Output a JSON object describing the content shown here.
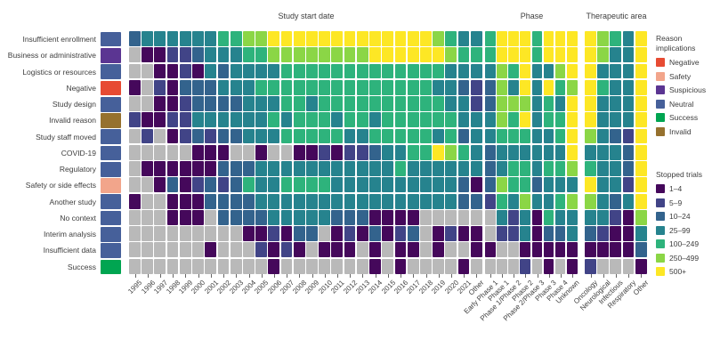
{
  "chart_data": {
    "type": "heatmap",
    "description": "Counts of stopped clinical trials binned by reason (rows) versus study start date, phase and therapeutic area (columns). Cell color encodes number of stopped trials; gray means none.",
    "value_encoding": [
      "none",
      "1–4",
      "5–9",
      "10–24",
      "25–99",
      "100–249",
      "250–499",
      "500+"
    ],
    "no_data_color": "#b9b9b9",
    "rows": [
      {
        "label": "Insufficient enrollment",
        "implication": "Neutral"
      },
      {
        "label": "Business or administrative",
        "implication": "Suspicious"
      },
      {
        "label": "Logistics or resources",
        "implication": "Neutral"
      },
      {
        "label": "Negative",
        "implication": "Negative"
      },
      {
        "label": "Study design",
        "implication": "Neutral"
      },
      {
        "label": "Invalid reason",
        "implication": "Invalid"
      },
      {
        "label": "Study staff moved",
        "implication": "Neutral"
      },
      {
        "label": "COVID-19",
        "implication": "Neutral"
      },
      {
        "label": "Regulatory",
        "implication": "Neutral"
      },
      {
        "label": "Safety or side effects",
        "implication": "Safety"
      },
      {
        "label": "Another study",
        "implication": "Neutral"
      },
      {
        "label": "No context",
        "implication": "Neutral"
      },
      {
        "label": "Interim analysis",
        "implication": "Neutral"
      },
      {
        "label": "Insufficient data",
        "implication": "Neutral"
      },
      {
        "label": "Success",
        "implication": "Success"
      }
    ],
    "sections": [
      {
        "title": "Study start date",
        "columns": [
          "1995",
          "1996",
          "1997",
          "1998",
          "1999",
          "2000",
          "2001",
          "2002",
          "2003",
          "2004",
          "2005",
          "2006",
          "2007",
          "2008",
          "2009",
          "2010",
          "2011",
          "2012",
          "2013",
          "2014",
          "2015",
          "2016",
          "2017",
          "2018",
          "2019",
          "2020",
          "2021",
          "Other"
        ],
        "values": [
          [
            3,
            4,
            4,
            4,
            4,
            4,
            4,
            5,
            5,
            6,
            6,
            7,
            7,
            7,
            7,
            7,
            7,
            7,
            7,
            7,
            7,
            7,
            7,
            7,
            6,
            5,
            4,
            4
          ],
          [
            0,
            1,
            1,
            2,
            2,
            3,
            4,
            4,
            4,
            5,
            5,
            6,
            6,
            6,
            6,
            6,
            6,
            6,
            6,
            7,
            7,
            7,
            7,
            7,
            7,
            6,
            5,
            5
          ],
          [
            0,
            0,
            1,
            1,
            2,
            1,
            4,
            3,
            4,
            4,
            4,
            4,
            5,
            5,
            5,
            5,
            5,
            5,
            5,
            5,
            5,
            5,
            5,
            5,
            5,
            4,
            4,
            4
          ],
          [
            1,
            0,
            2,
            1,
            3,
            3,
            3,
            4,
            4,
            4,
            5,
            5,
            5,
            5,
            5,
            5,
            5,
            5,
            5,
            5,
            5,
            5,
            5,
            5,
            4,
            4,
            3,
            2
          ],
          [
            0,
            0,
            1,
            1,
            2,
            3,
            3,
            3,
            3,
            4,
            4,
            4,
            5,
            5,
            4,
            5,
            5,
            5,
            5,
            5,
            5,
            5,
            5,
            5,
            5,
            4,
            4,
            2
          ],
          [
            2,
            1,
            1,
            2,
            2,
            4,
            4,
            4,
            4,
            4,
            4,
            5,
            4,
            5,
            5,
            5,
            4,
            5,
            5,
            4,
            5,
            5,
            5,
            5,
            5,
            5,
            4,
            4
          ],
          [
            0,
            2,
            0,
            1,
            2,
            3,
            2,
            3,
            3,
            4,
            4,
            4,
            5,
            5,
            5,
            5,
            5,
            4,
            4,
            5,
            5,
            5,
            5,
            5,
            4,
            5,
            3,
            4
          ],
          [
            0,
            0,
            0,
            0,
            0,
            1,
            1,
            1,
            0,
            0,
            1,
            0,
            0,
            1,
            1,
            2,
            1,
            2,
            2,
            3,
            4,
            4,
            5,
            5,
            7,
            6,
            5,
            4
          ],
          [
            0,
            1,
            1,
            1,
            1,
            1,
            1,
            3,
            3,
            3,
            4,
            4,
            4,
            4,
            4,
            4,
            4,
            4,
            4,
            4,
            4,
            5,
            4,
            4,
            4,
            4,
            4,
            4
          ],
          [
            0,
            0,
            1,
            3,
            1,
            2,
            3,
            2,
            3,
            5,
            4,
            4,
            5,
            5,
            5,
            5,
            4,
            4,
            4,
            4,
            4,
            4,
            4,
            4,
            4,
            4,
            3,
            1
          ],
          [
            1,
            0,
            0,
            1,
            1,
            1,
            3,
            3,
            3,
            3,
            4,
            4,
            4,
            4,
            4,
            4,
            4,
            4,
            4,
            4,
            4,
            4,
            4,
            4,
            4,
            4,
            3,
            3
          ],
          [
            0,
            0,
            0,
            1,
            1,
            1,
            0,
            3,
            3,
            3,
            3,
            4,
            4,
            4,
            4,
            4,
            3,
            3,
            3,
            1,
            1,
            1,
            1,
            0,
            0,
            0,
            0,
            0
          ],
          [
            0,
            0,
            0,
            0,
            0,
            0,
            0,
            0,
            0,
            1,
            1,
            2,
            1,
            3,
            3,
            0,
            1,
            2,
            1,
            3,
            1,
            2,
            3,
            0,
            1,
            2,
            1,
            1
          ],
          [
            0,
            0,
            0,
            0,
            0,
            0,
            1,
            0,
            0,
            0,
            2,
            1,
            2,
            1,
            0,
            1,
            1,
            1,
            0,
            1,
            0,
            1,
            1,
            0,
            1,
            0,
            0,
            1
          ],
          [
            0,
            0,
            0,
            0,
            0,
            0,
            0,
            0,
            0,
            0,
            0,
            1,
            0,
            0,
            0,
            0,
            0,
            0,
            0,
            1,
            0,
            1,
            0,
            0,
            0,
            0,
            1,
            0
          ]
        ]
      },
      {
        "title": "Phase",
        "columns": [
          "Early Phase 1",
          "Phase 1",
          "Phase 1/Phase 2",
          "Phase 2",
          "Phase 2/Phase 3",
          "Phase 3",
          "Phase 4",
          "Unknown"
        ],
        "values": [
          [
            5,
            7,
            7,
            7,
            5,
            7,
            7,
            7
          ],
          [
            5,
            7,
            7,
            7,
            5,
            7,
            7,
            7
          ],
          [
            4,
            6,
            5,
            7,
            4,
            4,
            6,
            7
          ],
          [
            3,
            6,
            4,
            7,
            4,
            7,
            5,
            6
          ],
          [
            3,
            6,
            6,
            6,
            4,
            5,
            4,
            7
          ],
          [
            4,
            6,
            5,
            7,
            4,
            5,
            5,
            7
          ],
          [
            4,
            5,
            5,
            5,
            4,
            4,
            5,
            7
          ],
          [
            3,
            4,
            4,
            4,
            4,
            4,
            4,
            7
          ],
          [
            3,
            4,
            5,
            5,
            4,
            5,
            5,
            6
          ],
          [
            3,
            6,
            5,
            5,
            3,
            4,
            4,
            4
          ],
          [
            2,
            5,
            4,
            6,
            4,
            4,
            5,
            6
          ],
          [
            0,
            4,
            2,
            4,
            1,
            5,
            4,
            4
          ],
          [
            0,
            2,
            2,
            4,
            1,
            3,
            3,
            4
          ],
          [
            1,
            0,
            0,
            1,
            1,
            1,
            1,
            1
          ],
          [
            0,
            0,
            0,
            2,
            0,
            1,
            0,
            1
          ]
        ]
      },
      {
        "title": "Therapeutic area",
        "columns": [
          "Oncology",
          "Neurological",
          "Infectious",
          "Respiratory",
          "Other"
        ],
        "values": [
          [
            7,
            6,
            5,
            4,
            7
          ],
          [
            7,
            6,
            4,
            4,
            7
          ],
          [
            7,
            4,
            4,
            4,
            7
          ],
          [
            7,
            5,
            4,
            4,
            7
          ],
          [
            7,
            4,
            4,
            4,
            7
          ],
          [
            7,
            4,
            4,
            4,
            7
          ],
          [
            6,
            4,
            3,
            2,
            7
          ],
          [
            4,
            4,
            4,
            3,
            7
          ],
          [
            5,
            4,
            4,
            3,
            7
          ],
          [
            7,
            4,
            4,
            2,
            7
          ],
          [
            6,
            4,
            3,
            4,
            7
          ],
          [
            4,
            4,
            2,
            1,
            6
          ],
          [
            3,
            2,
            1,
            1,
            4
          ],
          [
            1,
            1,
            1,
            1,
            3
          ],
          [
            2,
            0,
            0,
            0,
            1
          ]
        ]
      }
    ],
    "legends": {
      "reason_implications": {
        "title": "Reason implications",
        "items": [
          {
            "label": "Negative",
            "color": "#e74b33"
          },
          {
            "label": "Safety",
            "color": "#f2a58b"
          },
          {
            "label": "Suspicious",
            "color": "#5b3592"
          },
          {
            "label": "Neutral",
            "color": "#46609a"
          },
          {
            "label": "Success",
            "color": "#00a551"
          },
          {
            "label": "Invalid",
            "color": "#96712e"
          }
        ]
      },
      "stopped_trials": {
        "title": "Stopped trials",
        "items": [
          {
            "label": "1–4",
            "color": "#45085b"
          },
          {
            "label": "5–9",
            "color": "#414487"
          },
          {
            "label": "10–24",
            "color": "#33638d"
          },
          {
            "label": "25–99",
            "color": "#26838e"
          },
          {
            "label": "100–249",
            "color": "#2eb37c"
          },
          {
            "label": "250–499",
            "color": "#8bd646"
          },
          {
            "label": "500+",
            "color": "#fde725"
          }
        ]
      }
    },
    "grid": false,
    "legend_position": "right"
  }
}
